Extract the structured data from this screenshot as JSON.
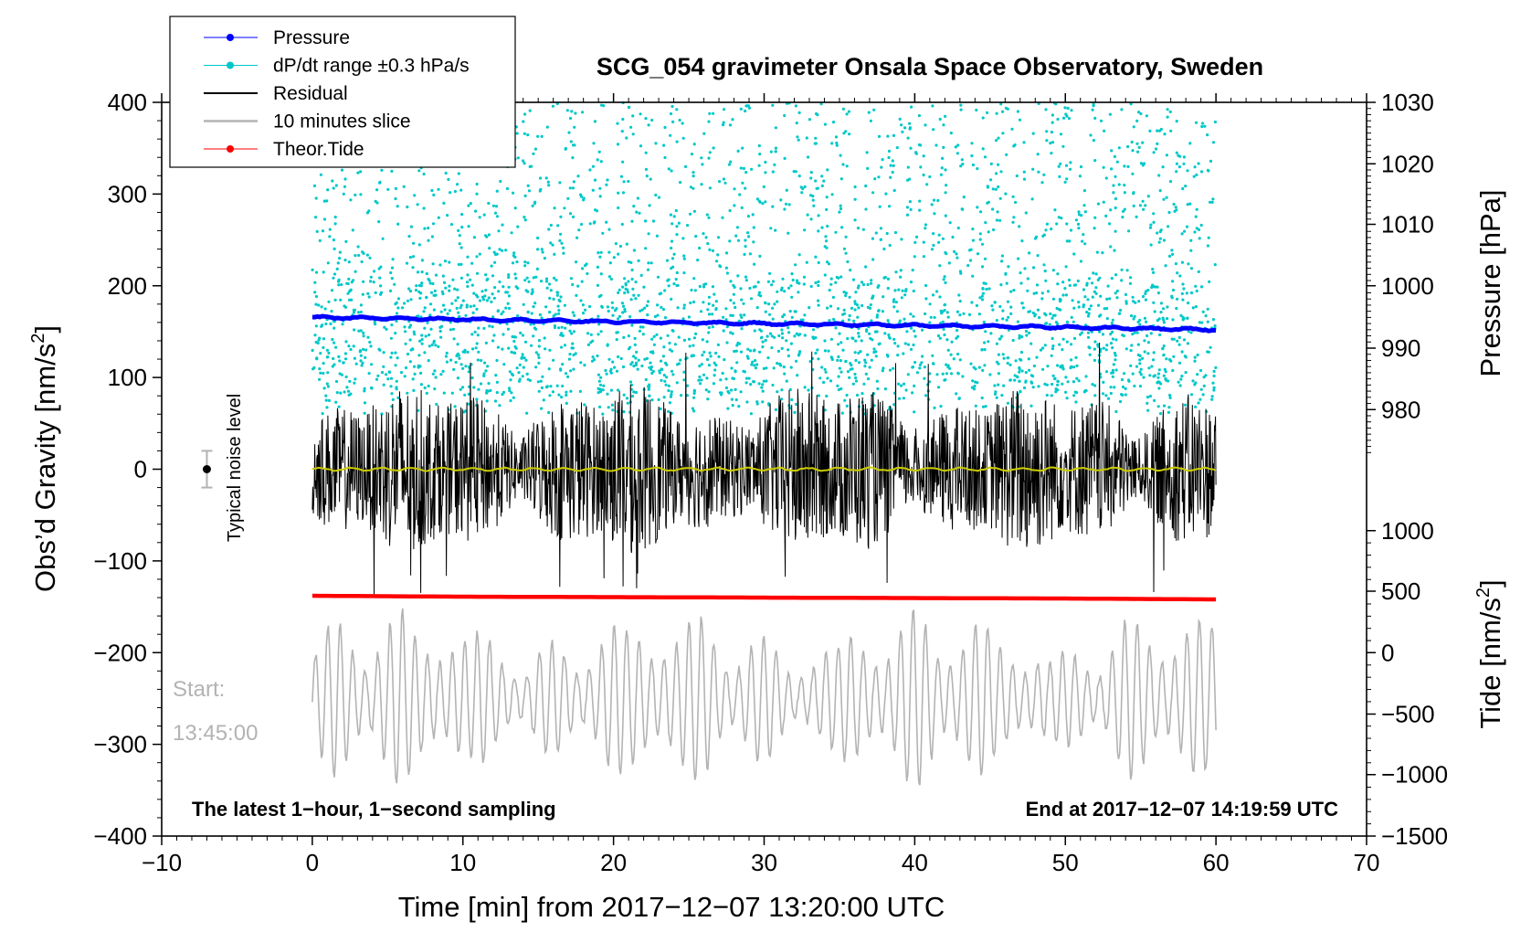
{
  "chart_data": {
    "type": "line",
    "title": "SCG_054 gravimeter Onsala Space Observatory, Sweden",
    "xlabel": "Time [min] from 2017−12−07 13:20:00 UTC",
    "xlim": [
      -10,
      70
    ],
    "x_ticks": [
      -10,
      0,
      10,
      20,
      30,
      40,
      50,
      60,
      70
    ],
    "x_tick_labels": [
      "−10",
      "0",
      "10",
      "20",
      "30",
      "40",
      "50",
      "60",
      "70"
    ],
    "left_axis": {
      "label": "Obs’d Gravity [nm/s²]",
      "label_base": "Obs’d Gravity [nm/s",
      "label_sup": "2",
      "label_close": "]",
      "ylim": [
        -400,
        400
      ],
      "ticks": [
        -400,
        -300,
        -200,
        -100,
        0,
        100,
        200,
        300,
        400
      ],
      "tick_labels": [
        "−400",
        "−300",
        "−200",
        "−100",
        "0",
        "100",
        "200",
        "300",
        "400"
      ]
    },
    "right_pressure_axis": {
      "label": "Pressure [hPa]",
      "ticks": [
        980,
        990,
        1000,
        1010,
        1020,
        1030
      ],
      "tick_labels": [
        "980",
        "990",
        "1000",
        "1010",
        "1020",
        "1030"
      ],
      "tick_gravity_positions": [
        65,
        132,
        200,
        267,
        333,
        400
      ],
      "range_hPa": [
        972.5,
        1030
      ]
    },
    "right_tide_axis": {
      "label": "Tide [nm/s²]",
      "label_base": "Tide [nm/s",
      "label_sup": "2",
      "label_close": "]",
      "ticks": [
        -1500,
        -1000,
        -500,
        0,
        500,
        1000
      ],
      "tick_labels": [
        "−1500",
        "−1000",
        "−500",
        "0",
        "500",
        "1000"
      ],
      "tick_gravity_positions": [
        -400,
        -333,
        -267,
        -200,
        -133,
        -67
      ]
    },
    "series": [
      {
        "name": "Pressure",
        "color": "#0000ff",
        "unit": "hPa",
        "x": [
          0,
          10,
          20,
          30,
          40,
          50,
          60
        ],
        "values": [
          995.0,
          994.7,
          994.3,
          994.0,
          993.7,
          993.4,
          993.0
        ]
      },
      {
        "name": "dP/dt range ±0.3 hPa/s",
        "color": "#00c8c8",
        "unit": "hPa/s",
        "range": [
          -0.3,
          0.3
        ],
        "plot_band_gravity": [
          60,
          400
        ]
      },
      {
        "name": "Residual",
        "color": "#000000",
        "unit": "nm/s²",
        "x_range": [
          0,
          60
        ],
        "envelope": [
          -140,
          145
        ]
      },
      {
        "name": "10 minutes slice",
        "color": "#b3b3b3",
        "unit": "nm/s²",
        "x_range": [
          0,
          60
        ],
        "center": -250,
        "envelope": [
          -365,
          -135
        ]
      },
      {
        "name": "Theor.Tide",
        "color": "#ff0000",
        "unit": "nm/s²",
        "x": [
          0,
          10,
          20,
          30,
          40,
          50,
          60
        ],
        "values": [
          -138,
          -139,
          -139.5,
          -140,
          -140.5,
          -141,
          -142
        ]
      },
      {
        "name": "Average",
        "color": "#cccc00",
        "unit": "nm/s²",
        "x": [
          0,
          60
        ],
        "values": [
          0,
          0
        ]
      }
    ],
    "legend": [
      "Pressure",
      "dP/dt range ±0.3 hPa/s",
      "Residual",
      "10 minutes slice",
      "Theor.Tide"
    ],
    "legend_position": "top-left",
    "annotations": {
      "noise_label": "Typical noise level",
      "noise_marker": {
        "x": -7,
        "y": 0,
        "err": 20
      },
      "start_label": "Start:",
      "start_time": "13:45:00",
      "bottom_left": "The latest 1−hour, 1−second sampling",
      "bottom_right": "End at 2017−12−07 14:19:59 UTC"
    }
  }
}
